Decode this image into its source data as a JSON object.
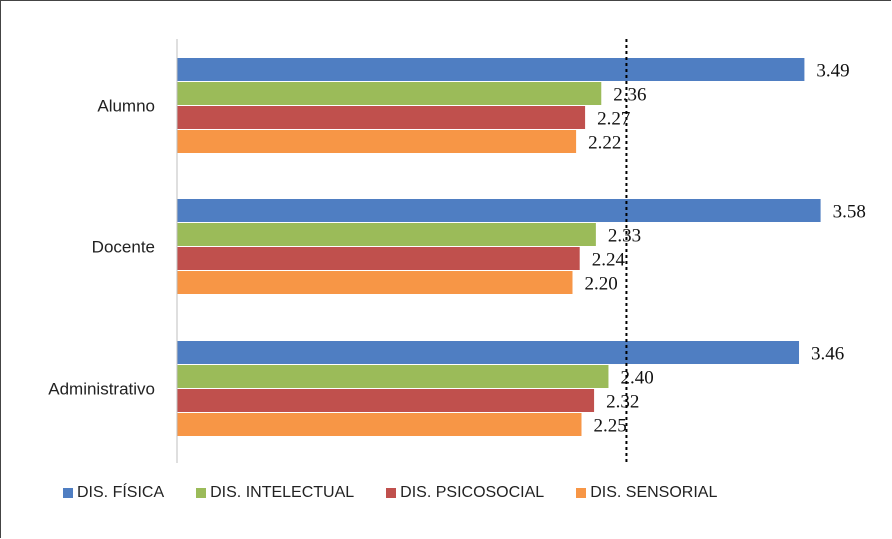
{
  "chart_data": {
    "type": "bar",
    "orientation": "horizontal",
    "categories": [
      "Alumno",
      "Docente",
      "Administrativo"
    ],
    "series": [
      {
        "name": "DIS. FÍSICA",
        "color": "#4F7EC2",
        "values": [
          3.49,
          3.58,
          3.46
        ],
        "labels": [
          "3.49",
          "3.58",
          "3.46"
        ]
      },
      {
        "name": "DIS. INTELECTUAL",
        "color": "#9BBB59",
        "values": [
          2.36,
          2.33,
          2.4
        ],
        "labels": [
          "2.36",
          "2.33",
          "2.40"
        ]
      },
      {
        "name": "DIS. PSICOSOCIAL",
        "color": "#C0504D",
        "values": [
          2.27,
          2.24,
          2.32
        ],
        "labels": [
          "2.27",
          "2.24",
          "2.32"
        ]
      },
      {
        "name": "DIS. SENSORIAL",
        "color": "#F79646",
        "values": [
          2.22,
          2.2,
          2.25
        ],
        "labels": [
          "2.22",
          "2.20",
          "2.25"
        ]
      }
    ],
    "xlim": [
      0,
      4.45
    ],
    "reference_line": 2.5,
    "grid": false,
    "legend": "bottom"
  }
}
